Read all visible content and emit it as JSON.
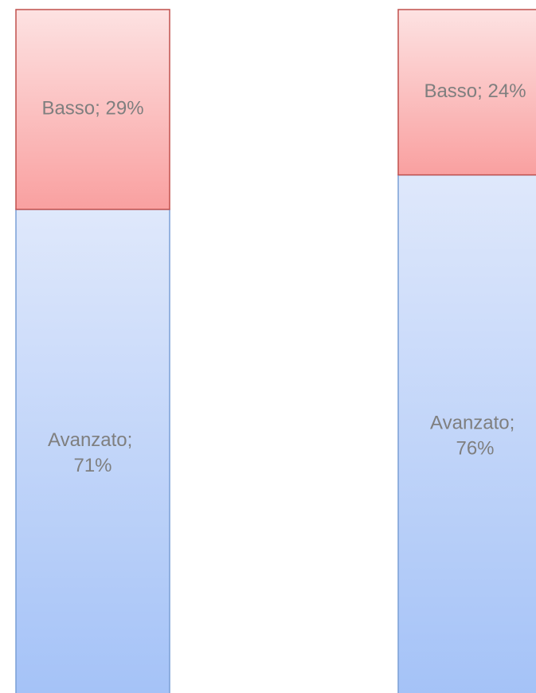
{
  "chart_data": {
    "type": "stacked_bar",
    "categories": [
      null,
      null
    ],
    "series": [
      {
        "name": "Avanzato",
        "color": "#a4c2f7",
        "values": [
          71,
          76
        ],
        "value_labels": [
          "Avanzato; 71%",
          "Avanzato; 76%"
        ]
      },
      {
        "name": "Basso",
        "color": "#f9a0a0",
        "values": [
          29,
          24
        ],
        "value_labels": [
          "Basso; 29%",
          "Basso; 24%"
        ]
      }
    ],
    "ylim": [
      0,
      100
    ]
  }
}
